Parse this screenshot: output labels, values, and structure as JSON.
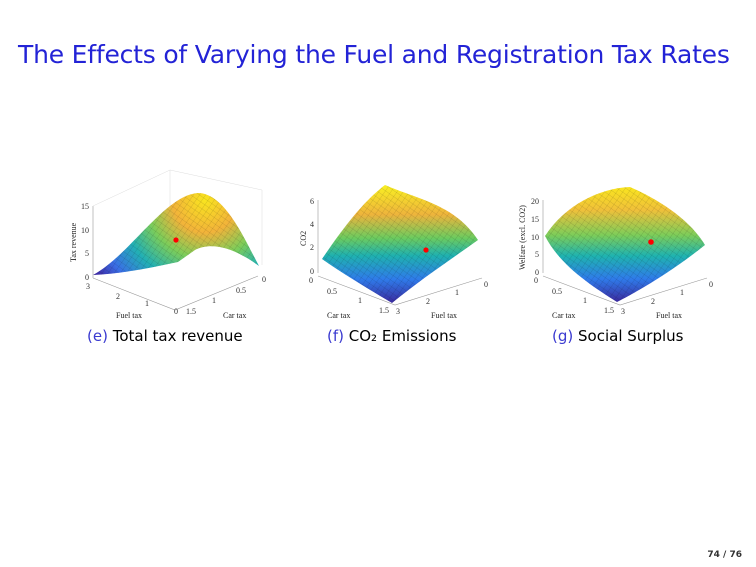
{
  "title": "The Effects of Varying the Fuel and Registration Tax Rates",
  "figures": [
    {
      "label": "(e)",
      "caption": "Total tax revenue",
      "zlabel": "Tax revenue",
      "xlabel": "Fuel tax",
      "ylabel": "Car tax",
      "zticks": [
        "15",
        "10",
        "5",
        "0"
      ],
      "fuel_ticks": [
        "3",
        "2",
        "1",
        "0"
      ],
      "car_ticks": [
        "1.5",
        "1",
        "0.5",
        "0"
      ]
    },
    {
      "label": "(f)",
      "caption": "CO₂ Emissions",
      "zlabel": "CO2",
      "xlabel": "Car tax",
      "ylabel": "Fuel tax",
      "zticks": [
        "6",
        "4",
        "2",
        "0"
      ],
      "car_ticks": [
        "0",
        "0.5",
        "1",
        "1.5"
      ],
      "fuel_ticks": [
        "3",
        "2",
        "1",
        "0"
      ]
    },
    {
      "label": "(g)",
      "caption": "Social Surplus",
      "zlabel": "Welfare (excl. CO2)",
      "xlabel": "Car tax",
      "ylabel": "Fuel tax",
      "zticks": [
        "20",
        "15",
        "10",
        "5",
        "0"
      ],
      "car_ticks": [
        "0",
        "0.5",
        "1",
        "1.5"
      ],
      "fuel_ticks": [
        "3",
        "2",
        "1",
        "0"
      ]
    }
  ],
  "marker_color": "#ff0000",
  "page": "74 / 76"
}
